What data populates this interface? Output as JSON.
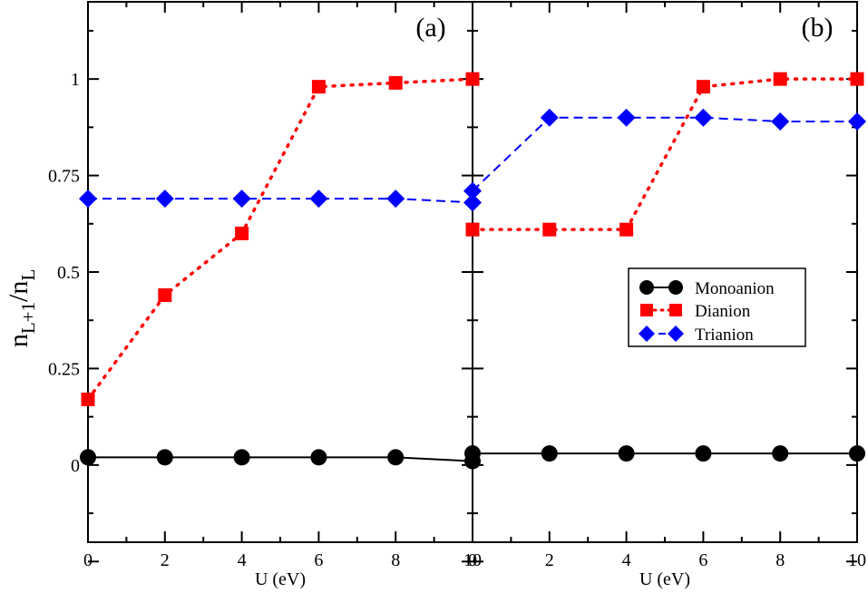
{
  "chart_data": [
    {
      "type": "line",
      "panel_label": "(a)",
      "xlabel": "U (eV)",
      "ylabel": {
        "base": "n",
        "sub1": "L+1",
        "sep": "/n",
        "sub2": "L"
      },
      "xlim": [
        0,
        10
      ],
      "ylim": [
        -0.2,
        1.2
      ],
      "x_ticks": [
        0,
        2,
        4,
        6,
        8,
        10
      ],
      "x_tick_labels": [
        "0",
        "2",
        "4",
        "6",
        "8",
        "10"
      ],
      "y_ticks": [
        0,
        0.25,
        0.5,
        0.75,
        1
      ],
      "y_tick_labels": [
        "0",
        "0.25",
        "0.5",
        "0.75",
        "1"
      ],
      "series": [
        {
          "name": "Monoanion",
          "color": "#000000",
          "marker": "circle",
          "line": "solid",
          "x": [
            0,
            2,
            4,
            6,
            8,
            10
          ],
          "y": [
            0.02,
            0.02,
            0.02,
            0.02,
            0.02,
            0.01
          ]
        },
        {
          "name": "Dianion",
          "color": "#ff0000",
          "marker": "square",
          "line": "dotted",
          "x": [
            0,
            2,
            4,
            6,
            8,
            10
          ],
          "y": [
            0.17,
            0.44,
            0.6,
            0.98,
            0.99,
            1.0
          ]
        },
        {
          "name": "Trianion",
          "color": "#0000ff",
          "marker": "diamond",
          "line": "dashed",
          "x": [
            0,
            2,
            4,
            6,
            8,
            10
          ],
          "y": [
            0.69,
            0.69,
            0.69,
            0.69,
            0.69,
            0.68
          ]
        }
      ]
    },
    {
      "type": "line",
      "panel_label": "(b)",
      "xlabel": "U (eV)",
      "xlim": [
        0,
        10
      ],
      "ylim": [
        -0.2,
        1.2
      ],
      "x_ticks": [
        0,
        2,
        4,
        6,
        8,
        10
      ],
      "x_tick_labels": [
        "0",
        "2",
        "4",
        "6",
        "8",
        "10"
      ],
      "legend_position": "center-right",
      "legend": [
        "Monoanion",
        "Dianion",
        "Trianion"
      ],
      "series": [
        {
          "name": "Monoanion",
          "color": "#000000",
          "marker": "circle",
          "line": "solid",
          "x": [
            0,
            2,
            4,
            6,
            8,
            10
          ],
          "y": [
            0.03,
            0.03,
            0.03,
            0.03,
            0.03,
            0.03
          ]
        },
        {
          "name": "Dianion",
          "color": "#ff0000",
          "marker": "square",
          "line": "dotted",
          "x": [
            0,
            2,
            4,
            6,
            8,
            10
          ],
          "y": [
            0.61,
            0.61,
            0.61,
            0.98,
            1.0,
            1.0
          ]
        },
        {
          "name": "Trianion",
          "color": "#0000ff",
          "marker": "diamond",
          "line": "dashed",
          "x": [
            0,
            2,
            4,
            6,
            8,
            10
          ],
          "y": [
            0.71,
            0.9,
            0.9,
            0.9,
            0.89,
            0.89
          ]
        }
      ]
    }
  ]
}
